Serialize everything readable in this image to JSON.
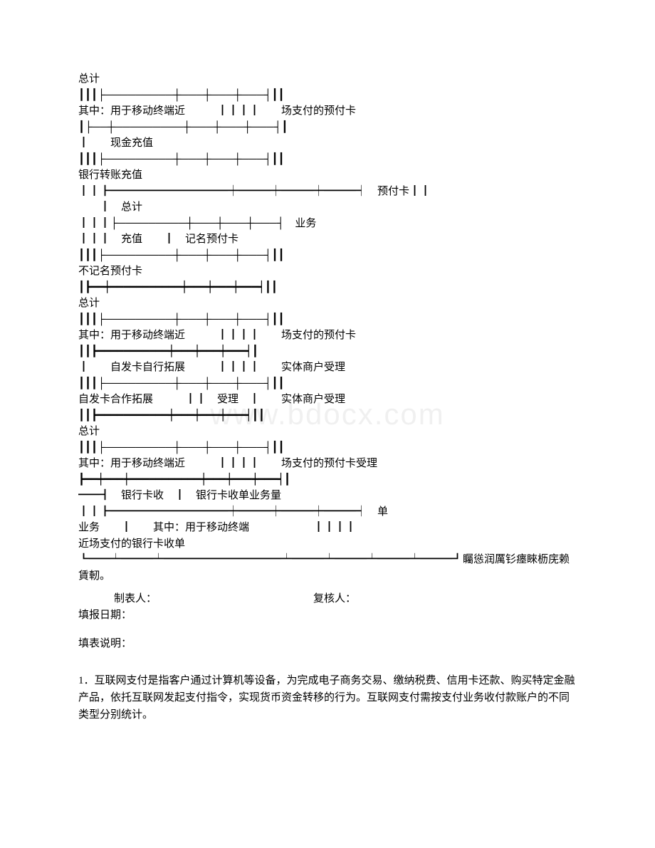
{
  "watermark": "www.bdocx.com",
  "lines": [
    "总计",
    "┃┃┃├─────────┼───┼───┼───┤┃┃",
    "其中：用于移动终端近　　　┃┃┃┃　　场支付的预付卡",
    "┃├──┼─────────┼───┼───┼───┤┃",
    "┃　　现金充值",
    "┃┃┃├─────────┼───┼───┼───┤┃┃",
    "银行转账充值",
    "┃┃┣━━━━━━━━━━━┿━━━┿━━━┿━━━┥　预付卡┃┃",
    "　　┃　总计",
    "┃┃┃├─────────┼───┼───┼───┤　业务",
    "┃┃┃　充值　　┃　记名预付卡",
    "┃┃┃├─────────┼───┼───┼───┤┃┃",
    "不记名预付卡",
    "┃┣━━┿━━━━━━━━━━━┿━━━┿━━━┿━━━┥┃┃",
    "总计",
    "┃┃┃├─────────┼───┼───┼───┤┃┃",
    "其中：用于移动终端近　　　┃┃┃┃　　场支付的预付卡",
    "┃┃┣━━━━━━━━━━━┿━━━┿━━━┿━━━┥┃",
    "┃　　自发卡自行拓展　　　┃┃┃┃　　实体商户受理",
    "┃┃┃├─────────┼───┼───┼───┤┃┃",
    "自发卡合作拓展　　　┃┃　受理　┃　　实体商户受理",
    "┃┃┣━━━━━━━━━━━┿━━━┿━━━┿━━━┥┃┃",
    "总计",
    "┃┃┃├─────────┼───┼───┼───┤┃┃",
    "其中：用于移动终端近　　　┃┃┃┃　　场支付的预付卡受理",
    "┣━━┿━━━┿━━━━━━━━━━━┿━━━┿━━━┿━━━┥┃",
    "━━┫　银行卡收　┃　银行卡收单业务量",
    "┃┃┣━━━━━━━━━━━┿━━━┿━━━┿━━━┥　单",
    "业务　　┃　　其中：用于移动终端　　　　　　┃┃┃┃",
    "近场支付的银行卡收单",
    "┗━━┷━━━┷━━━━━━━━━━━┷━━━┷━━━┷━━━┷━━━┛矚慫润厲钐瘗睞枥庑赖賃軔。"
  ],
  "footer": {
    "preparer_label": "制表人：",
    "reviewer_label": "复核人：",
    "report_date_label": "填报日期："
  },
  "explanation_title": "填表说明：",
  "paragraph_1": "1．互联网支付是指客户通过计算机等设备，为完成电子商务交易、缴纳税费、信用卡还款、购买特定金融产品，依托互联网发起支付指令，实现货币资金转移的行为。互联网支付需按支付业务收付款账户的不同类型分别统计。"
}
